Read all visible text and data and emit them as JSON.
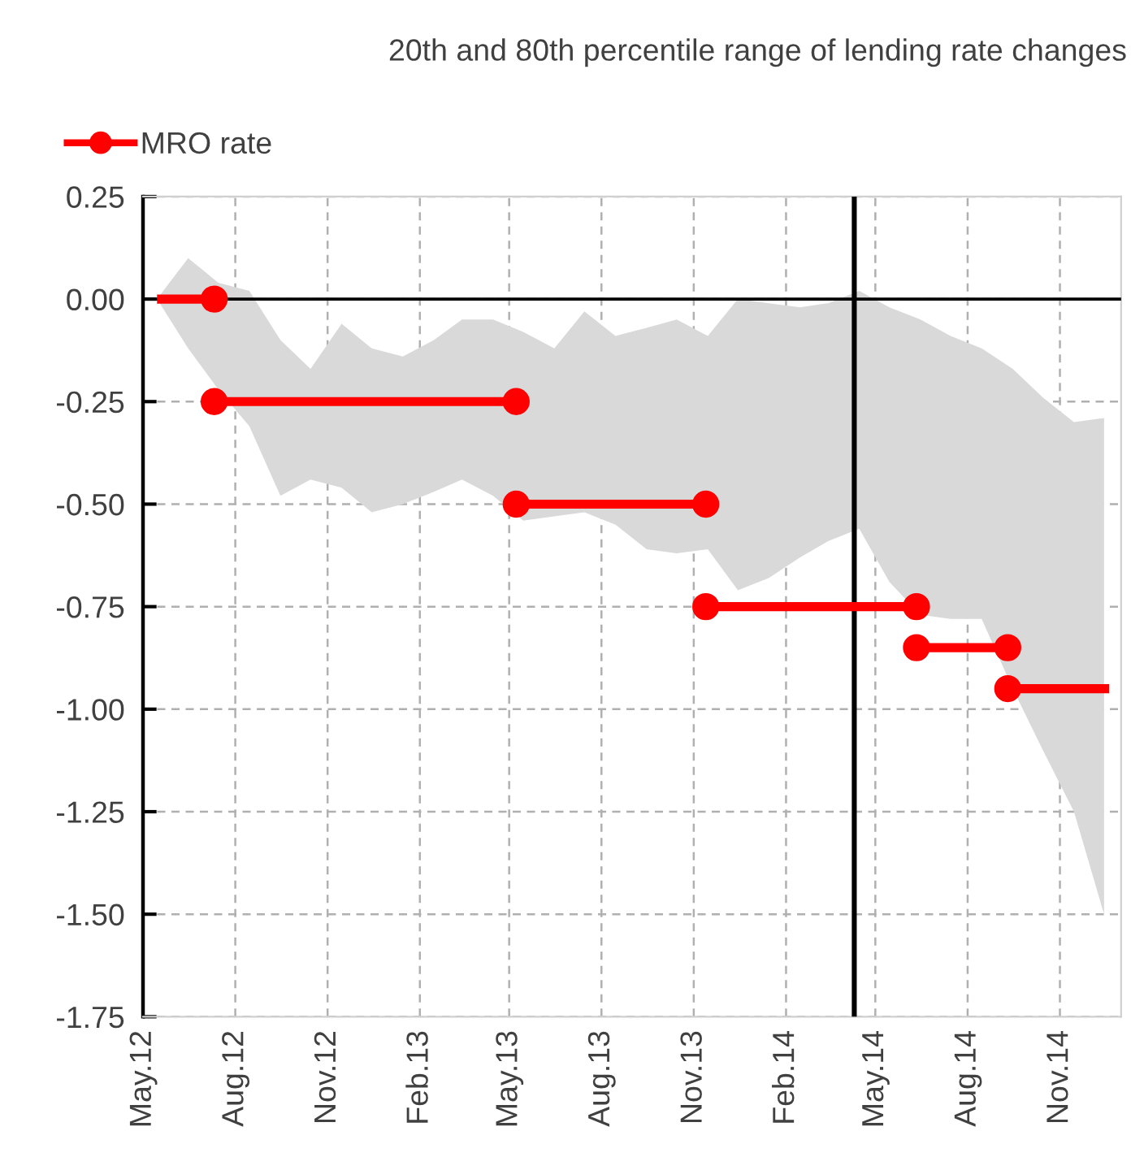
{
  "chart_data": {
    "type": "line",
    "title": "20th and 80th percentile range of lending rate changes",
    "xlim": [
      "2012-05-01",
      "2015-01-01"
    ],
    "xticks": [
      {
        "value": "2012-05-01",
        "label": "May.12"
      },
      {
        "value": "2012-08-01",
        "label": "Aug.12"
      },
      {
        "value": "2012-11-01",
        "label": "Nov.12"
      },
      {
        "value": "2013-02-01",
        "label": "Feb.13"
      },
      {
        "value": "2013-05-01",
        "label": "May.13"
      },
      {
        "value": "2013-08-01",
        "label": "Aug.13"
      },
      {
        "value": "2013-11-01",
        "label": "Nov.13"
      },
      {
        "value": "2014-02-01",
        "label": "Feb.14"
      },
      {
        "value": "2014-05-01",
        "label": "May.14"
      },
      {
        "value": "2014-08-01",
        "label": "Aug.14"
      },
      {
        "value": "2014-11-01",
        "label": "Nov.14"
      }
    ],
    "ylim": [
      -1.75,
      0.25
    ],
    "yticks": [
      {
        "value": 0.25,
        "label": "0.25"
      },
      {
        "value": 0,
        "label": "0.00"
      },
      {
        "value": -0.25,
        "label": "-0.25"
      },
      {
        "value": -0.5,
        "label": "-0.50"
      },
      {
        "value": -0.75,
        "label": "-0.75"
      },
      {
        "value": -1,
        "label": "-1.00"
      },
      {
        "value": -1.25,
        "label": "-1.25"
      },
      {
        "value": -1.5,
        "label": "-1.50"
      },
      {
        "value": -1.75,
        "label": "-1.75"
      }
    ],
    "grid": true,
    "legend": "top left",
    "ref_lines": [
      {
        "axis": "y",
        "value": 0,
        "color": "#000000"
      },
      {
        "axis": "x",
        "value": "2014-04-10",
        "color": "#000000"
      }
    ],
    "series": [
      {
        "color": "#d9d9d9",
        "x": [
          "2012-05-15",
          "2012-06-15",
          "2012-07-15",
          "2012-08-15",
          "2012-09-15",
          "2012-10-15",
          "2012-11-15",
          "2012-12-15",
          "2013-01-15",
          "2013-02-15",
          "2013-03-15",
          "2013-04-15",
          "2013-05-15",
          "2013-06-15",
          "2013-07-15",
          "2013-08-15",
          "2013-09-15",
          "2013-10-15",
          "2013-11-15",
          "2013-12-15",
          "2014-01-15",
          "2014-02-15",
          "2014-03-15",
          "2014-04-15",
          "2014-05-15",
          "2014-06-15",
          "2014-07-15",
          "2014-08-15",
          "2014-09-15",
          "2014-10-15",
          "2014-11-15",
          "2014-12-15"
        ],
        "values": [
          null,
          null,
          null,
          null,
          null,
          null,
          null,
          null,
          null,
          null,
          null,
          null,
          null,
          null,
          null,
          null,
          null,
          null,
          null,
          null,
          null,
          null,
          null,
          null,
          null,
          null,
          null,
          null,
          null,
          null,
          null,
          null
        ],
        "upper": [
          0.0,
          0.1,
          0.04,
          0.02,
          -0.1,
          -0.17,
          -0.06,
          -0.12,
          -0.14,
          -0.1,
          -0.05,
          -0.05,
          -0.08,
          -0.12,
          -0.03,
          -0.09,
          -0.07,
          -0.05,
          -0.09,
          0.0,
          -0.01,
          -0.02,
          -0.01,
          0.02,
          -0.02,
          -0.05,
          -0.09,
          -0.12,
          -0.17,
          -0.24,
          -0.3,
          -0.29
        ],
        "lower": [
          0.0,
          -0.12,
          -0.22,
          -0.31,
          -0.48,
          -0.44,
          -0.46,
          -0.52,
          -0.5,
          -0.47,
          -0.44,
          -0.48,
          -0.54,
          -0.53,
          -0.52,
          -0.55,
          -0.61,
          -0.62,
          -0.61,
          -0.71,
          -0.68,
          -0.63,
          -0.59,
          -0.56,
          -0.69,
          -0.77,
          -0.78,
          -0.78,
          -0.95,
          -1.1,
          -1.25,
          -1.5
        ]
      },
      {
        "name": "MRO rate",
        "color": "#ff0000",
        "marker": "circle",
        "line_style": "solid",
        "x": [
          "2012-05-15",
          "2012-07-11"
        ],
        "values": [
          0,
          0
        ]
      },
      {
        "color": "#ff0000",
        "marker": "circle",
        "line_style": "solid",
        "x": [
          "2012-07-11",
          "2013-05-08"
        ],
        "values": [
          -0.25,
          -0.25
        ]
      },
      {
        "color": "#ff0000",
        "marker": "circle",
        "line_style": "solid",
        "x": [
          "2013-05-08",
          "2013-11-13"
        ],
        "values": [
          -0.5,
          -0.5
        ]
      },
      {
        "color": "#ff0000",
        "marker": "circle",
        "line_style": "solid",
        "x": [
          "2013-11-13",
          "2014-06-11"
        ],
        "values": [
          -0.75,
          -0.75
        ]
      },
      {
        "color": "#ff0000",
        "marker": "circle",
        "line_style": "solid",
        "x": [
          "2014-06-11",
          "2014-09-10"
        ],
        "values": [
          -0.85,
          -0.85
        ]
      },
      {
        "color": "#ff0000",
        "marker": "circle",
        "line_style": "solid",
        "x": [
          "2014-09-10",
          "2014-12-20"
        ],
        "values": [
          -0.95,
          -0.95
        ]
      }
    ]
  }
}
